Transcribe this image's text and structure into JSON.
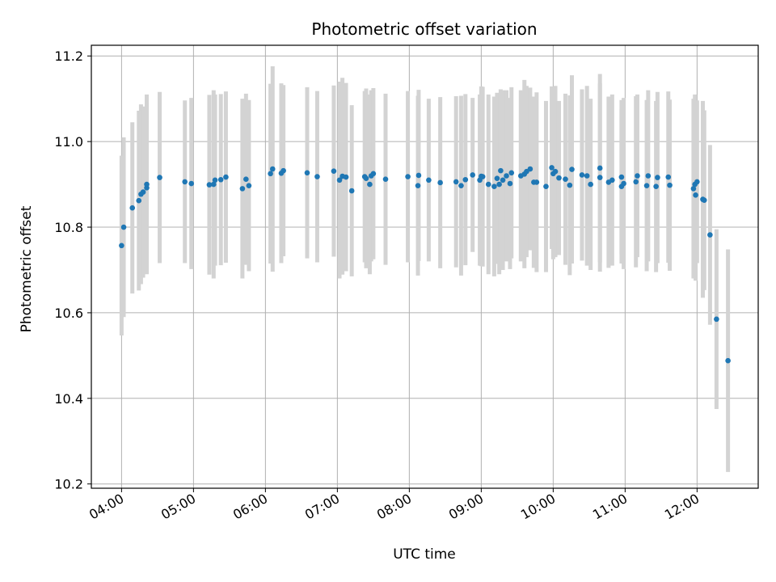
{
  "chart_data": {
    "type": "scatter",
    "title": "Photometric offset variation",
    "xlabel": "UTC time",
    "ylabel": "Photometric offset",
    "x_unit": "hours",
    "xlim": [
      3.58,
      12.85
    ],
    "ylim": [
      10.19,
      11.225
    ],
    "xticks": [
      4,
      5,
      6,
      7,
      8,
      9,
      10,
      11,
      12
    ],
    "xtick_labels": [
      "04:00",
      "05:00",
      "06:00",
      "07:00",
      "08:00",
      "09:00",
      "10:00",
      "11:00",
      "12:00"
    ],
    "yticks": [
      10.2,
      10.4,
      10.6,
      10.8,
      11.0,
      11.2
    ],
    "ytick_labels": [
      "10.2",
      "10.4",
      "10.6",
      "10.8",
      "11.0",
      "11.2"
    ],
    "grid": true,
    "point_color": "#1f77b4",
    "errorbar_color": "#d3d3d3",
    "series": [
      {
        "x": [
          4.0,
          4.03,
          4.15,
          4.24,
          4.27,
          4.3,
          4.35,
          4.35,
          4.53,
          4.88,
          4.97,
          5.22,
          5.28,
          5.3,
          5.38,
          5.45,
          5.68,
          5.73,
          5.77,
          6.07,
          6.1,
          6.22,
          6.25,
          6.58,
          6.72,
          6.95,
          7.03,
          7.07,
          7.12,
          7.2,
          7.38,
          7.4,
          7.45,
          7.47,
          7.5,
          7.67,
          7.98,
          8.12,
          8.13,
          8.27,
          8.43,
          8.65,
          8.72,
          8.78,
          8.88,
          8.98,
          9.0,
          9.02,
          9.1,
          9.18,
          9.22,
          9.25,
          9.27,
          9.3,
          9.35,
          9.4,
          9.42,
          9.55,
          9.6,
          9.63,
          9.68,
          9.73,
          9.77,
          9.9,
          9.98,
          10.0,
          10.03,
          10.08,
          10.17,
          10.23,
          10.26,
          10.4,
          10.47,
          10.52,
          10.65,
          10.65,
          10.77,
          10.82,
          10.95,
          10.95,
          10.98,
          11.15,
          11.17,
          11.3,
          11.32,
          11.43,
          11.45,
          11.6,
          11.62,
          11.95,
          11.97,
          11.98,
          12.0,
          12.08,
          12.1,
          12.18,
          12.27,
          12.43
        ],
        "y": [
          10.757,
          10.8,
          10.845,
          10.862,
          10.877,
          10.882,
          10.892,
          10.9,
          10.916,
          10.906,
          10.902,
          10.899,
          10.9,
          10.91,
          10.911,
          10.917,
          10.89,
          10.912,
          10.897,
          10.925,
          10.936,
          10.926,
          10.932,
          10.927,
          10.918,
          10.931,
          10.91,
          10.919,
          10.917,
          10.885,
          10.918,
          10.914,
          10.9,
          10.92,
          10.925,
          10.912,
          10.918,
          10.897,
          10.921,
          10.91,
          10.904,
          10.906,
          10.897,
          10.911,
          10.922,
          10.91,
          10.919,
          10.918,
          10.9,
          10.895,
          10.914,
          10.9,
          10.932,
          10.91,
          10.92,
          10.902,
          10.927,
          10.92,
          10.924,
          10.93,
          10.936,
          10.905,
          10.905,
          10.895,
          10.939,
          10.925,
          10.93,
          10.915,
          10.912,
          10.898,
          10.935,
          10.922,
          10.92,
          10.9,
          10.916,
          10.938,
          10.905,
          10.91,
          10.917,
          10.895,
          10.902,
          10.906,
          10.92,
          10.897,
          10.92,
          10.895,
          10.916,
          10.917,
          10.898,
          10.89,
          10.9,
          10.875,
          10.906,
          10.865,
          10.863,
          10.782,
          10.585,
          10.488
        ],
        "yerr": [
          0.21,
          0.21,
          0.2,
          0.21,
          0.21,
          0.2,
          0.2,
          0.21,
          0.2,
          0.19,
          0.2,
          0.21,
          0.22,
          0.2,
          0.2,
          0.2,
          0.21,
          0.2,
          0.2,
          0.21,
          0.24,
          0.21,
          0.2,
          0.2,
          0.2,
          0.2,
          0.23,
          0.23,
          0.22,
          0.2,
          0.2,
          0.21,
          0.21,
          0.2,
          0.2,
          0.2,
          0.2,
          0.21,
          0.2,
          0.19,
          0.2,
          0.2,
          0.21,
          0.2,
          0.18,
          0.2,
          0.21,
          0.21,
          0.21,
          0.21,
          0.2,
          0.21,
          0.19,
          0.21,
          0.2,
          0.2,
          0.2,
          0.2,
          0.22,
          0.2,
          0.19,
          0.2,
          0.21,
          0.2,
          0.19,
          0.2,
          0.2,
          0.18,
          0.2,
          0.21,
          0.22,
          0.2,
          0.21,
          0.2,
          0.22,
          0.22,
          0.2,
          0.2,
          0.18,
          0.18,
          0.2,
          0.2,
          0.19,
          0.2,
          0.2,
          0.2,
          0.2,
          0.2,
          0.2,
          0.21,
          0.21,
          0.2,
          0.19,
          0.23,
          0.21,
          0.21,
          0.21,
          0.26
        ]
      }
    ]
  }
}
